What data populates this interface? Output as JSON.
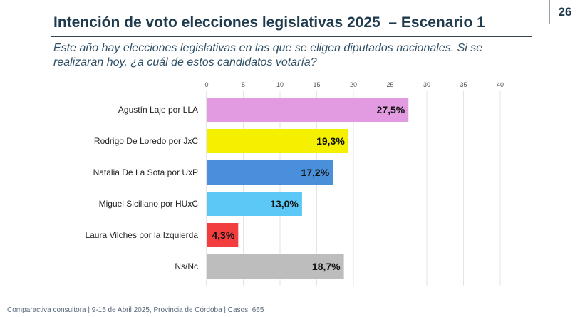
{
  "page_number": "26",
  "chart_data": {
    "type": "bar",
    "orientation": "horizontal",
    "title": "Intención de voto elecciones legislativas 2025",
    "title_suffix": "– Escenario 1",
    "subtitle": "Este año hay elecciones legislativas en las que se eligen diputados nacionales. Si se realizaran hoy, ¿a cuál de estos candidatos votaría?",
    "categories": [
      "Agustín Laje por LLA",
      "Rodrigo De Loredo por JxC",
      "Natalia De La Sota por UxP",
      "Miguel Siciliano por HUxC",
      "Laura Vilches por la Izquierda",
      "Ns/Nc"
    ],
    "values": [
      27.5,
      19.3,
      17.2,
      13.0,
      4.3,
      18.7
    ],
    "value_labels": [
      "27,5%",
      "19,3%",
      "17,2%",
      "13,0%",
      "4,3%",
      "18,7%"
    ],
    "colors": [
      "#e29be0",
      "#f4f000",
      "#4a8fd9",
      "#5bc8f5",
      "#f23e3e",
      "#bdbdbd"
    ],
    "xlim": [
      0,
      40
    ],
    "ticks": [
      0,
      5,
      10,
      15,
      20,
      25,
      30,
      35,
      40
    ],
    "grid": true
  },
  "footer": "Comparactiva consultora | 9-15 de Abril 2025, Provincia de Córdoba | Casos: 665"
}
